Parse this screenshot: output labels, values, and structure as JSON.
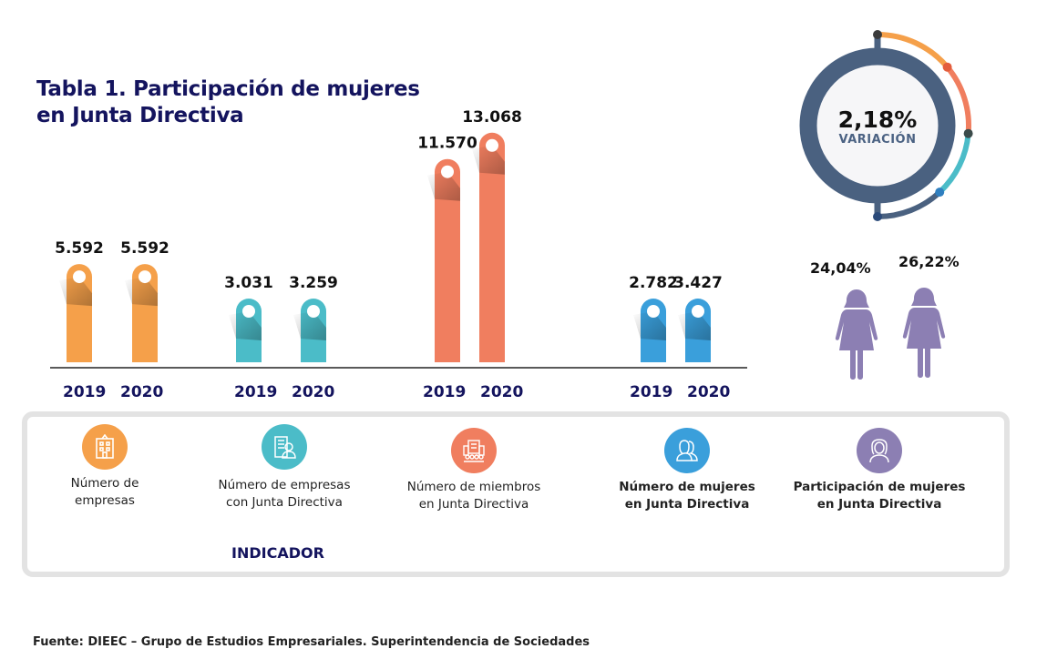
{
  "title_line1": "Tabla 1. Participación de mujeres",
  "title_line2": "en Junta Directiva",
  "chart_data": {
    "type": "bar",
    "title": "Tabla 1. Participación de mujeres en Junta Directiva",
    "categories": [
      "2019",
      "2020"
    ],
    "groups": [
      {
        "name": "Número de empresas",
        "color": "#f5a04a",
        "values": [
          5592,
          5592
        ],
        "labels": [
          "5.592",
          "5.592"
        ]
      },
      {
        "name": "Número de empresas con Junta Directiva",
        "color": "#4bbcc8",
        "values": [
          3031,
          3259
        ],
        "labels": [
          "3.031",
          "3.259"
        ]
      },
      {
        "name": "Número de miembros en Junta Directiva",
        "color": "#f07e5f",
        "values": [
          11570,
          13068
        ],
        "labels": [
          "11.570",
          "13.068"
        ]
      },
      {
        "name": "Número de mujeres en Junta Directiva",
        "color": "#3a9fdb",
        "values": [
          2782,
          3427
        ],
        "labels": [
          "2.782",
          "3.427"
        ]
      }
    ],
    "participation": {
      "name": "Participación de mujeres en Junta Directiva",
      "color": "#8c7fb3",
      "values": [
        24.04,
        26.22
      ],
      "labels": [
        "24,04%",
        "26,22%"
      ]
    },
    "variation": {
      "value": 2.18,
      "label": "2,18%",
      "caption": "VARIACIÓN"
    },
    "xlabel": "INDICADOR",
    "ylabel": ""
  },
  "indicators": [
    {
      "label_line1": "Número de",
      "label_line2": "empresas",
      "color": "#f5a04a",
      "icon": "building-icon"
    },
    {
      "label_line1": "Número de empresas",
      "label_line2": "con Junta Directiva",
      "color": "#4bbcc8",
      "icon": "office-person-icon"
    },
    {
      "label_line1": "Número de miembros",
      "label_line2": "en Junta Directiva",
      "color": "#f07e5f",
      "icon": "board-members-icon"
    },
    {
      "label_line1": "Número de mujeres",
      "label_line2": "en Junta Directiva",
      "color": "#3a9fdb",
      "icon": "women-icon"
    },
    {
      "label_line1": "Participación de mujeres",
      "label_line2": "en Junta Directiva",
      "color": "#8c7fb3",
      "icon": "woman-icon"
    }
  ],
  "indicador_label": "INDICADOR",
  "source": "Fuente: DIEEC – Grupo de Estudios Empresariales. Superintendencia de Sociedades"
}
